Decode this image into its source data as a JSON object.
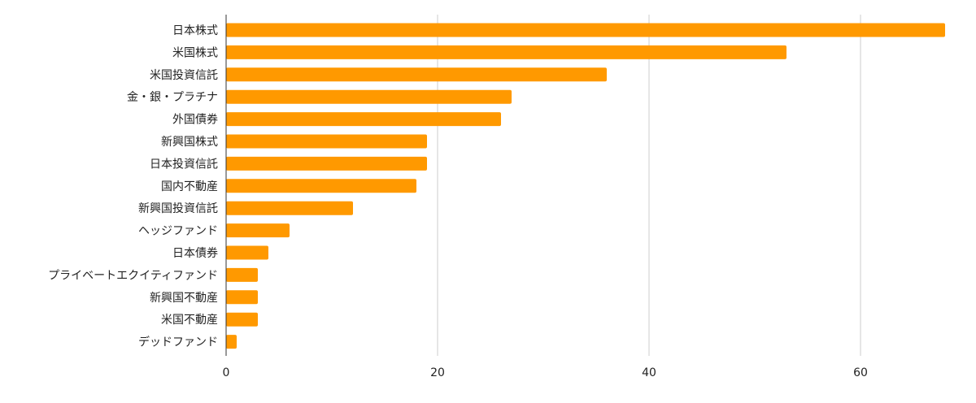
{
  "chart_data": {
    "type": "bar",
    "orientation": "horizontal",
    "title": "",
    "xlabel": "",
    "ylabel": "",
    "xlim": [
      0,
      68
    ],
    "x_ticks": [
      0,
      20,
      40,
      60
    ],
    "grid": "vertical",
    "legend": "none",
    "bar_color": "#ff9900",
    "categories": [
      "日本株式",
      "米国株式",
      "米国投資信託",
      "金・銀・プラチナ",
      "外国債券",
      "新興国株式",
      "日本投資信託",
      "国内不動産",
      "新興国投資信託",
      "ヘッジファンド",
      "日本債券",
      "プライベートエクイティファンド",
      "新興国不動産",
      "米国不動産",
      "デッドファンド"
    ],
    "values": [
      68,
      53,
      36,
      27,
      26,
      19,
      19,
      18,
      12,
      6,
      4,
      3,
      3,
      3,
      1
    ]
  }
}
